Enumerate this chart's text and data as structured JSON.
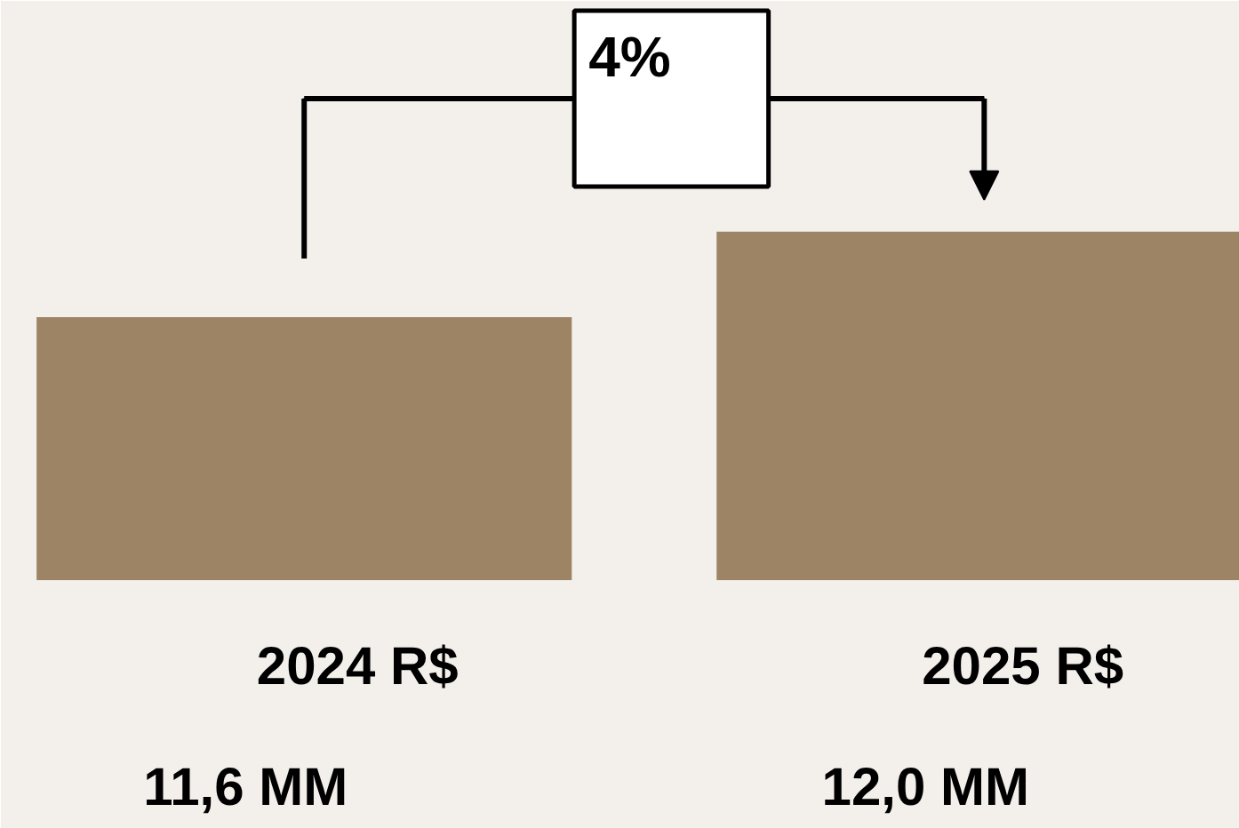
{
  "chart_data": {
    "type": "bar",
    "categories": [
      "2024 R$",
      "2025   R$"
    ],
    "values": [
      11.6,
      12.0
    ],
    "ylim": [
      10.37,
      13.08
    ],
    "color": "#9c8465",
    "value_labels": [
      "11,6 MM",
      "12,0 MM"
    ],
    "annotations": [
      "4%"
    ]
  }
}
